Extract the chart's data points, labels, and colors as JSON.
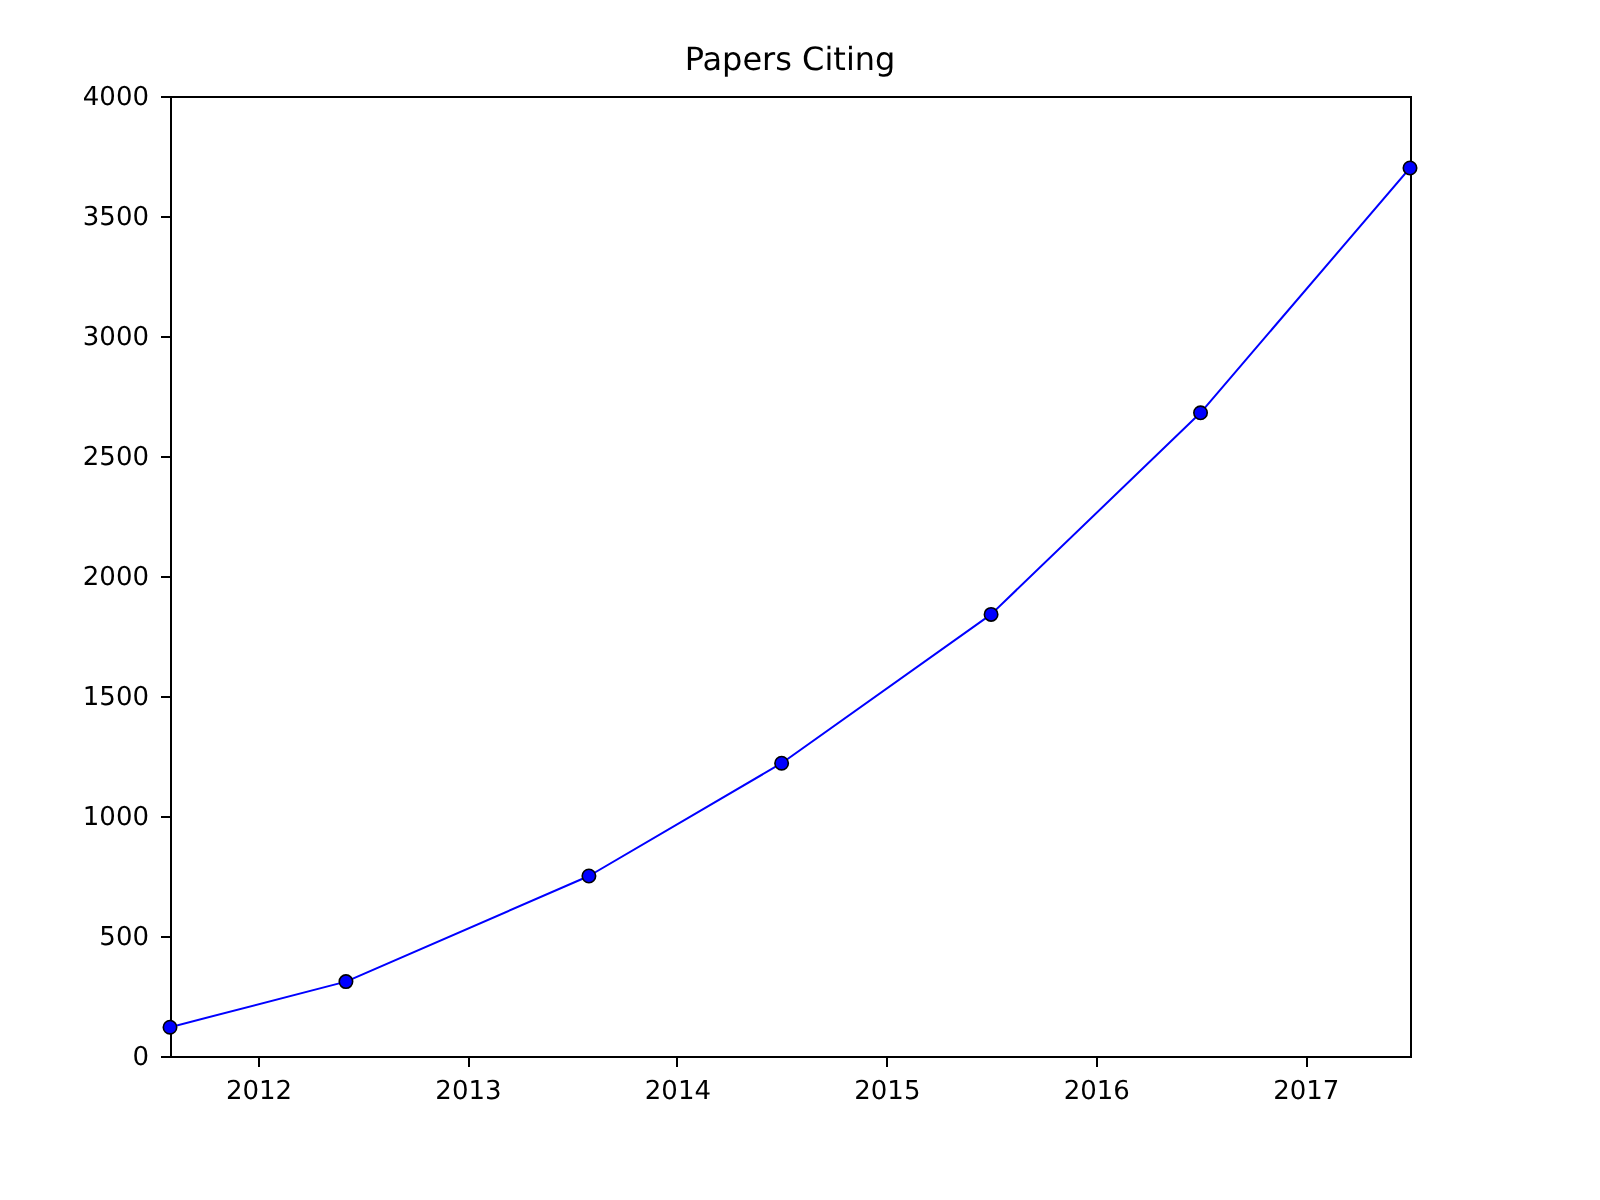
{
  "chart_data": {
    "type": "line",
    "title": "Papers Citing",
    "x": [
      2011.58,
      2012.42,
      2013.58,
      2014.5,
      2015.5,
      2016.5,
      2017.5
    ],
    "series": [
      {
        "color": "#0000ff",
        "values": [
          120,
          310,
          750,
          1220,
          1840,
          2680,
          3700
        ]
      }
    ],
    "xlim": [
      2011.58,
      2017.5
    ],
    "xticks": [
      2012,
      2013,
      2014,
      2015,
      2016,
      2017
    ],
    "ylim": [
      0,
      4000
    ],
    "yticks": [
      0,
      500,
      1000,
      1500,
      2000,
      2500,
      3000,
      3500,
      4000
    ],
    "grid": false,
    "legend": false,
    "marker": "circle",
    "line_style": "solid"
  }
}
